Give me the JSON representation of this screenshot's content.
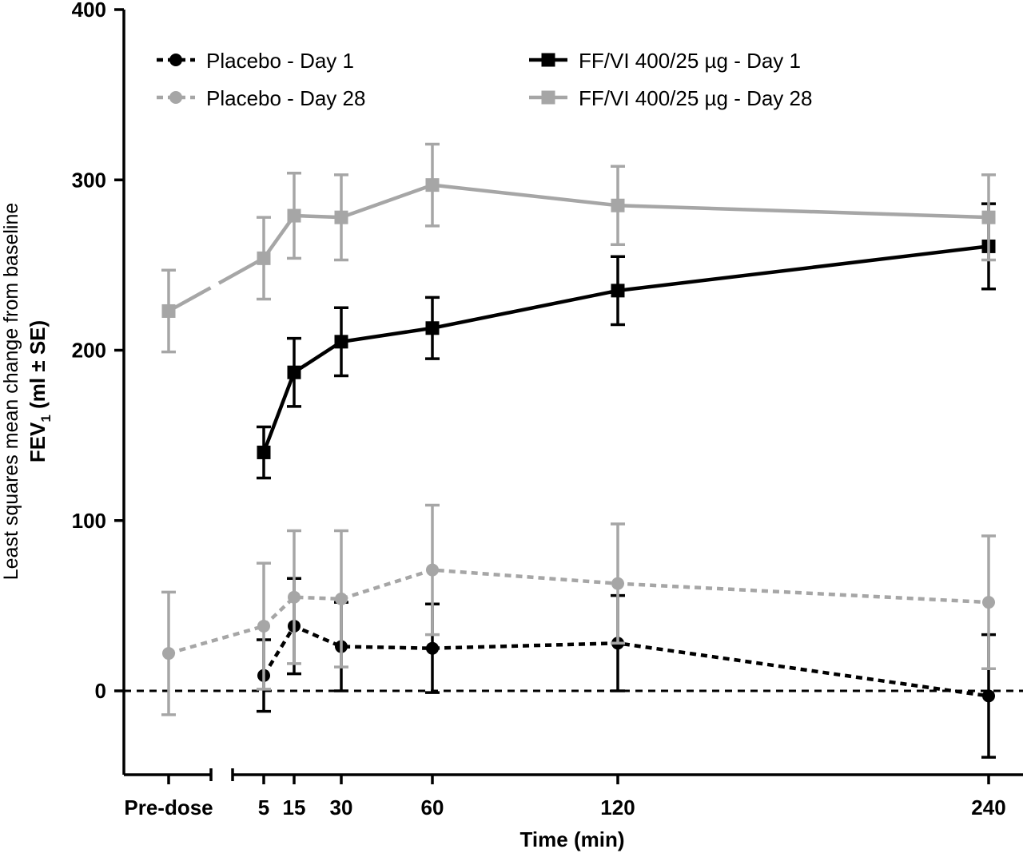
{
  "chart_data": {
    "type": "line",
    "ylabel_line1": "Least squares mean change from baseline",
    "ylabel_line2_main": "FEV",
    "ylabel_line2_sub": "1",
    "ylabel_line2_rest": " (ml  ± SE)",
    "xlabel": "Time (min)",
    "ylim": [
      -50,
      400
    ],
    "yticks": [
      0,
      100,
      200,
      300,
      400
    ],
    "x_categories": [
      "Pre-dose",
      "5",
      "15",
      "30",
      "60",
      "120",
      "240"
    ],
    "axis_break": true,
    "reference_line_y": 0,
    "colors": {
      "black": "#000000",
      "grey": "#a6a6a6"
    },
    "series": [
      {
        "name": "Placebo - Day 1",
        "marker": "circle",
        "line_style": "dashed",
        "color": "#000000",
        "x": [
          "5",
          "15",
          "30",
          "60",
          "120",
          "240"
        ],
        "values": [
          9,
          38,
          26,
          25,
          28,
          -3
        ],
        "error": [
          21,
          28,
          26,
          26,
          28,
          36
        ]
      },
      {
        "name": "Placebo - Day 28",
        "marker": "circle",
        "line_style": "dashed",
        "color": "#a6a6a6",
        "x": [
          "Pre-dose",
          "5",
          "15",
          "30",
          "60",
          "120",
          "240"
        ],
        "values": [
          22,
          38,
          55,
          54,
          71,
          63,
          52
        ],
        "error": [
          36,
          37,
          39,
          40,
          38,
          35,
          39
        ]
      },
      {
        "name": "FF/VI 400/25 µg   - Day 1",
        "marker": "square",
        "line_style": "solid",
        "color": "#000000",
        "x": [
          "5",
          "15",
          "30",
          "60",
          "120",
          "240"
        ],
        "values": [
          140,
          187,
          205,
          213,
          235,
          261
        ],
        "error": [
          15,
          20,
          20,
          18,
          20,
          25
        ]
      },
      {
        "name": "FF/VI 400/25 µg   - Day 28",
        "marker": "square",
        "line_style": "solid",
        "color": "#a6a6a6",
        "x": [
          "Pre-dose",
          "5",
          "15",
          "30",
          "60",
          "120",
          "240"
        ],
        "values": [
          223,
          254,
          279,
          278,
          297,
          285,
          278
        ],
        "error": [
          24,
          24,
          25,
          25,
          24,
          23,
          25
        ]
      }
    ]
  }
}
